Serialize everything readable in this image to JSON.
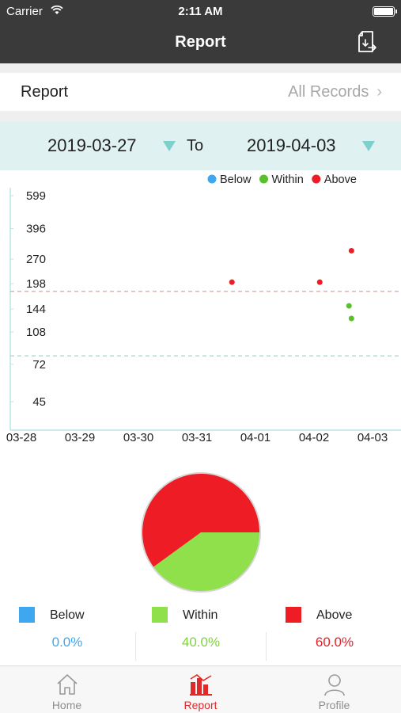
{
  "status_bar": {
    "carrier": "Carrier",
    "time": "2:11 AM"
  },
  "nav": {
    "title": "Report",
    "export_icon": "export-document-icon"
  },
  "report_row": {
    "label": "Report",
    "link": "All Records"
  },
  "date_range": {
    "from": "2019-03-27",
    "to_label": "To",
    "to": "2019-04-03"
  },
  "colors": {
    "below": "#3ea7f0",
    "within": "#58c02a",
    "above": "#ee1c25",
    "nav_bg": "#3a3a3a",
    "accent": "#e02a2a",
    "threshold_high": "#f29a9a",
    "threshold_low": "#9fdcd6"
  },
  "chart_data": {
    "type": "scatter",
    "legend": [
      "Below",
      "Within",
      "Above"
    ],
    "legend_position": "top-right",
    "y_ticks": [
      "599",
      "396",
      "270",
      "198",
      "144",
      "108",
      "72",
      "45"
    ],
    "y_scale": "log",
    "x_ticks": [
      "03-28",
      "03-29",
      "03-30",
      "03-31",
      "04-01",
      "04-02",
      "04-03"
    ],
    "thresholds": [
      180,
      80
    ],
    "series": [
      {
        "name": "Below",
        "points": []
      },
      {
        "name": "Within",
        "points": [
          {
            "x": "2019-04-02T15:00",
            "y": 150
          },
          {
            "x": "2019-04-02T16:00",
            "y": 128
          }
        ]
      },
      {
        "name": "Above",
        "points": [
          {
            "x": "2019-03-31T15:00",
            "y": 202
          },
          {
            "x": "2019-04-02T03:00",
            "y": 202
          },
          {
            "x": "2019-04-02T16:00",
            "y": 300
          }
        ]
      }
    ]
  },
  "pie_data": {
    "type": "pie",
    "slices": [
      {
        "name": "Below",
        "value": 0.0
      },
      {
        "name": "Within",
        "value": 40.0
      },
      {
        "name": "Above",
        "value": 60.0
      }
    ]
  },
  "summary": [
    {
      "label": "Below",
      "percent": "0.0%"
    },
    {
      "label": "Within",
      "percent": "40.0%"
    },
    {
      "label": "Above",
      "percent": "60.0%"
    }
  ],
  "tabs": [
    {
      "label": "Home",
      "icon": "home-icon",
      "active": false
    },
    {
      "label": "Report",
      "icon": "report-chart-icon",
      "active": true
    },
    {
      "label": "Profile",
      "icon": "profile-icon",
      "active": false
    }
  ]
}
